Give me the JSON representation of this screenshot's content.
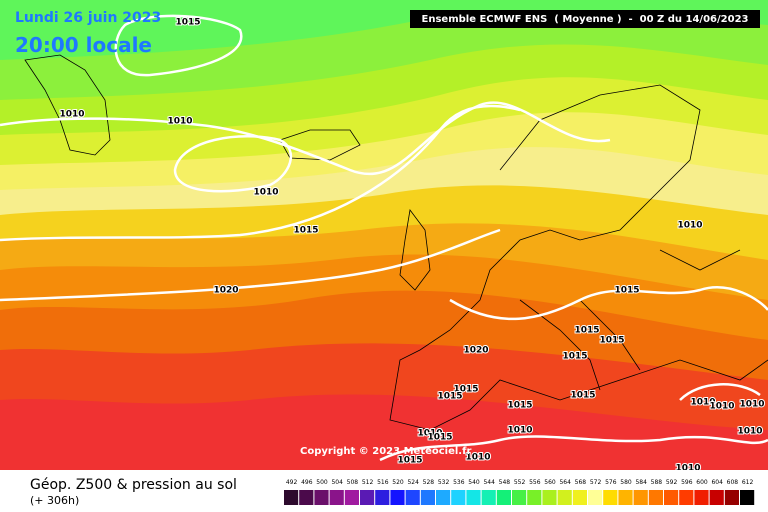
{
  "header": {
    "date": "Lundi 26 juin 2023",
    "time": "20:00 locale",
    "run": "Ensemble ECMWF ENS  ( Moyenne )  -  00 Z du 14/06/2023"
  },
  "map": {
    "isobar_labels": [
      "1015",
      "1010",
      "1010",
      "1010",
      "1015",
      "1020",
      "1010",
      "1015",
      "1015",
      "1015",
      "1015",
      "1020",
      "1015",
      "1015",
      "1015",
      "1015",
      "1010",
      "1010",
      "1015",
      "1015",
      "1010",
      "1010",
      "1010",
      "1010",
      "1010",
      "1010"
    ],
    "copyright": "Copyright © 2023 Meteociel.fr"
  },
  "footer": {
    "title": "Géop. Z500 & pression au sol",
    "lead": "(+ 306h)"
  },
  "legend": {
    "ticks": [
      492,
      496,
      500,
      504,
      508,
      512,
      516,
      520,
      524,
      528,
      532,
      536,
      540,
      544,
      548,
      552,
      556,
      560,
      564,
      568,
      572,
      576,
      580,
      584,
      588,
      592,
      596,
      600,
      604,
      608,
      612
    ],
    "colors": [
      "#2d0a2d",
      "#4b0a4b",
      "#6a0f6a",
      "#8a148a",
      "#a01aa0",
      "#5a1ab4",
      "#2d1ee0",
      "#1414ff",
      "#1e46ff",
      "#1e78ff",
      "#1eaaff",
      "#1ed2ff",
      "#14e6e6",
      "#14f0b4",
      "#14f078",
      "#46f046",
      "#78f028",
      "#aaf01e",
      "#d2f01e",
      "#f0f01e",
      "#ffff96",
      "#ffdc00",
      "#ffb400",
      "#ff9600",
      "#ff7800",
      "#ff5a00",
      "#ff3c00",
      "#f01e00",
      "#c80000",
      "#960000",
      "#000000"
    ]
  }
}
